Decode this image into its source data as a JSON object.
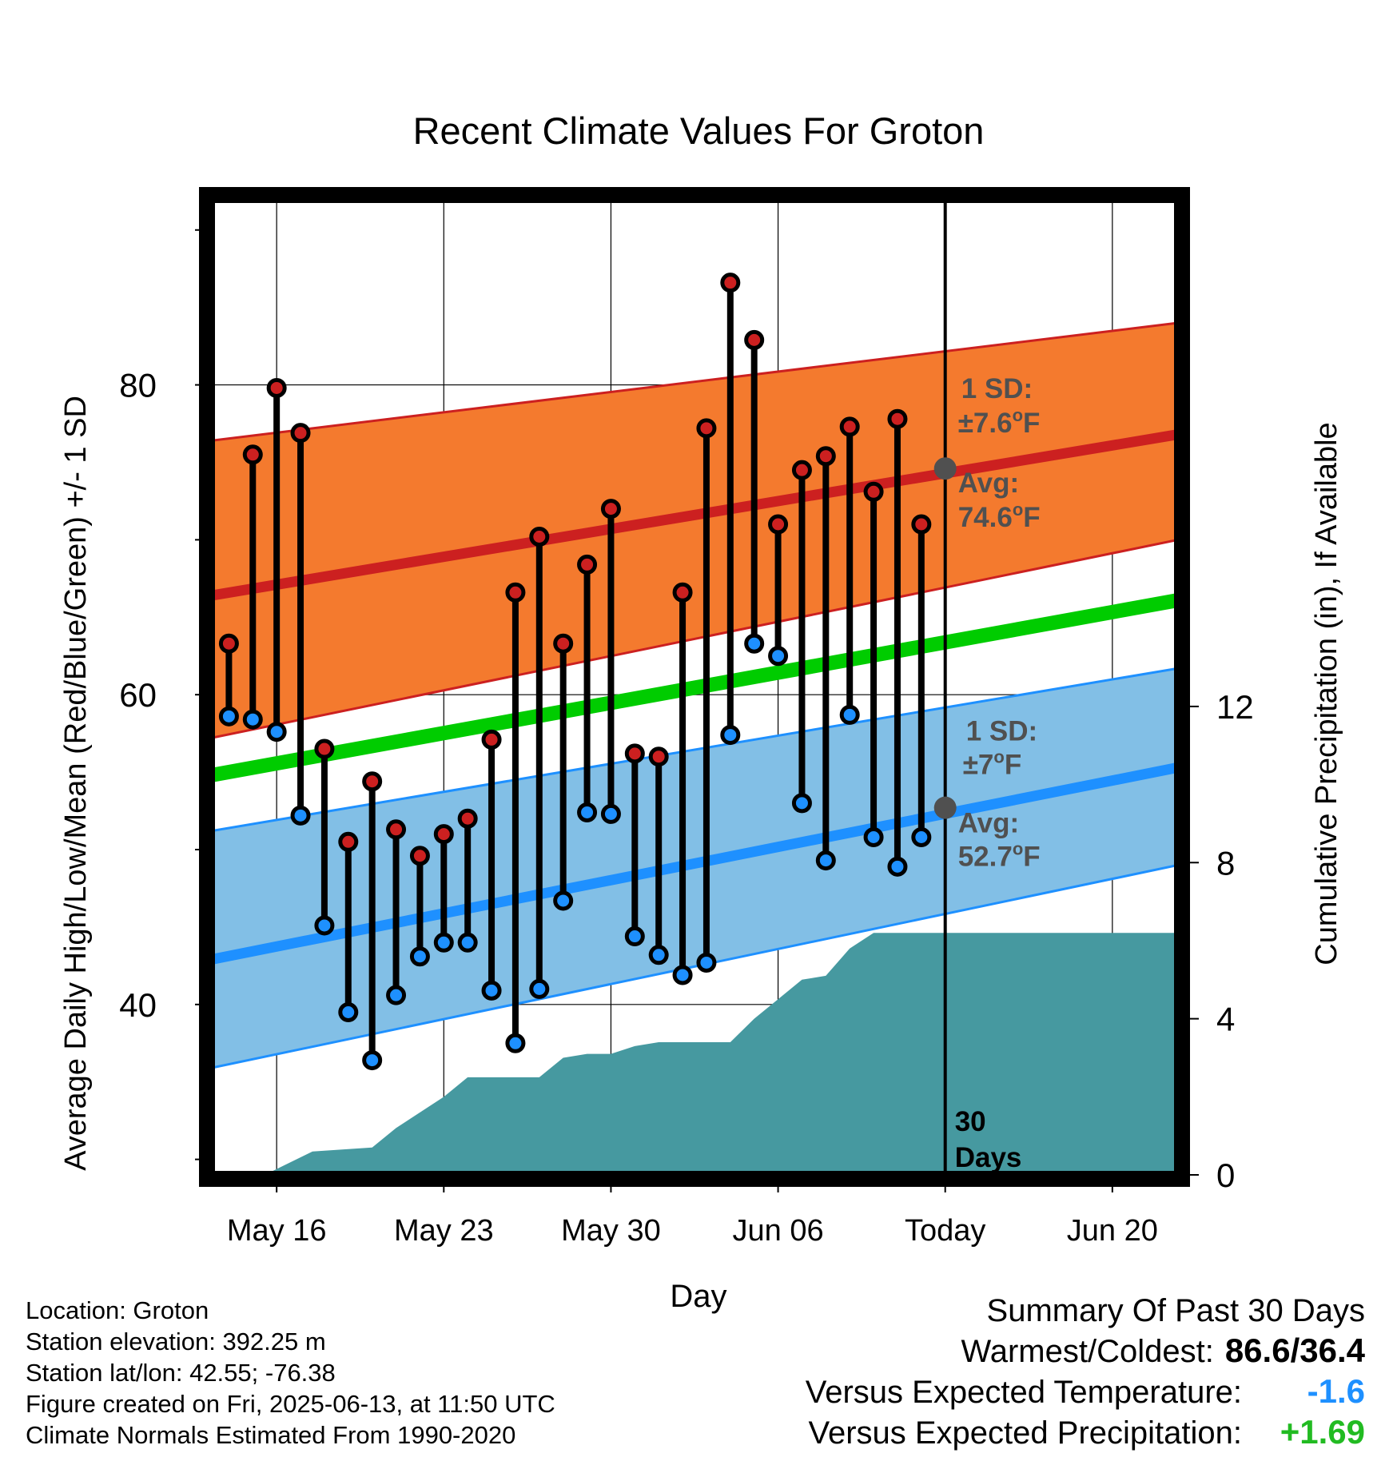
{
  "chart_data": {
    "type": "line",
    "title": "Recent Climate Values For Groton",
    "xlabel": "Day",
    "ylabel": "Average Daily High/Low/Mean (Red/Blue/Green) +/- 1 SD",
    "y2label": "Cumulative Precipitation (in), If Available",
    "x_ticks": [
      "May 16",
      "May 23",
      "May 30",
      "Jun 06",
      "Today",
      "Jun 20"
    ],
    "x_tick_days": [
      2,
      9,
      16,
      23,
      30,
      37
    ],
    "xlim": [
      -0.75,
      39.75
    ],
    "ylim": [
      29,
      92
    ],
    "y_ticks": [
      "40",
      "60",
      "80"
    ],
    "y_tick_values": [
      40,
      60,
      80
    ],
    "y_minor_values": [
      30,
      50,
      70,
      90
    ],
    "y2lim": [
      0,
      25
    ],
    "y2_ticks": [
      "0",
      "4",
      "8",
      "12"
    ],
    "y2_tick_values": [
      0,
      4,
      8,
      12
    ],
    "today_day": 30,
    "today_label": [
      "30",
      "Days"
    ],
    "daily": {
      "day": [
        0,
        1,
        2,
        3,
        4,
        5,
        6,
        7,
        8,
        9,
        10,
        11,
        12,
        13,
        14,
        15,
        16,
        17,
        18,
        19,
        20,
        21,
        22,
        23,
        24,
        25,
        26,
        27,
        28,
        29
      ],
      "high": [
        63.3,
        75.5,
        79.8,
        76.9,
        56.5,
        50.5,
        54.4,
        51.3,
        49.6,
        51.0,
        52.0,
        57.1,
        66.6,
        70.2,
        63.3,
        68.4,
        72.0,
        56.2,
        56.0,
        66.6,
        77.2,
        86.6,
        82.9,
        71.0,
        74.5,
        75.4,
        77.3,
        73.1,
        77.8,
        71.0
      ],
      "low": [
        58.6,
        58.4,
        57.6,
        52.2,
        45.1,
        39.5,
        36.4,
        40.6,
        43.1,
        44.0,
        44.0,
        40.9,
        37.5,
        41.0,
        46.7,
        52.4,
        52.3,
        44.4,
        43.2,
        41.9,
        42.7,
        57.4,
        63.3,
        62.5,
        53.0,
        49.3,
        58.7,
        50.8,
        48.9,
        50.8
      ]
    },
    "normals": {
      "day": [
        -0.75,
        39.75
      ],
      "high_avg": [
        66.4,
        76.8
      ],
      "high_upper": [
        76.4,
        84.0
      ],
      "high_lower": [
        57.2,
        70.0
      ],
      "low_avg": [
        42.9,
        55.3
      ],
      "low_upper": [
        51.2,
        61.7
      ],
      "low_lower": [
        35.9,
        49.0
      ],
      "mean_avg": [
        54.8,
        66.1
      ]
    },
    "precip": {
      "day": [
        -0.75,
        1.5,
        3.5,
        6,
        7,
        8,
        9,
        10,
        11,
        12,
        13,
        14,
        15,
        16,
        17,
        18,
        19,
        20,
        21,
        22,
        23,
        24,
        25,
        26,
        27,
        28,
        29,
        30,
        39.75
      ],
      "cum": [
        0,
        0,
        0.6,
        0.7,
        1.2,
        1.6,
        2.0,
        2.5,
        2.5,
        2.5,
        2.5,
        3.0,
        3.1,
        3.1,
        3.3,
        3.4,
        3.4,
        3.4,
        3.4,
        4.0,
        4.5,
        5.0,
        5.1,
        5.8,
        6.2,
        6.2,
        6.2,
        6.2,
        6.2
      ]
    },
    "annotations": {
      "high_sd_label": "1 SD:",
      "high_sd_value": "±7.6",
      "high_avg_label": "Avg:",
      "high_avg_value": "74.6",
      "high_avg_at_today": 74.6,
      "low_sd_label": "1 SD:",
      "low_sd_value": "±7",
      "low_avg_label": "Avg:",
      "low_avg_value": "52.7",
      "low_avg_at_today": 52.7,
      "deg": "o",
      "unit": "F"
    },
    "colors": {
      "high": "#cc2020",
      "high_band": "#f47a2e",
      "low": "#1e90ff",
      "low_band": "#82bfe6",
      "mean": "#00cc00",
      "precip": "#4699a0",
      "annotation": "#505050"
    }
  },
  "station_info": [
    "Location: Groton",
    "Station elevation: 392.25 m",
    "Station lat/lon: 42.55; -76.38",
    "Figure created on Fri, 2025-06-13, at 11:50 UTC",
    "Climate Normals Estimated From 1990-2020"
  ],
  "summary": {
    "title": "Summary Of Past 30 Days",
    "warm_cold_label": "Warmest/Coldest:",
    "warm_cold_value": "86.6/36.4",
    "temp_label": "Versus Expected Temperature:",
    "temp_value": "-1.6",
    "temp_color": "#1e90ff",
    "precip_label": "Versus Expected Precipitation:",
    "precip_value": "+1.69",
    "precip_color": "#22bb22"
  }
}
